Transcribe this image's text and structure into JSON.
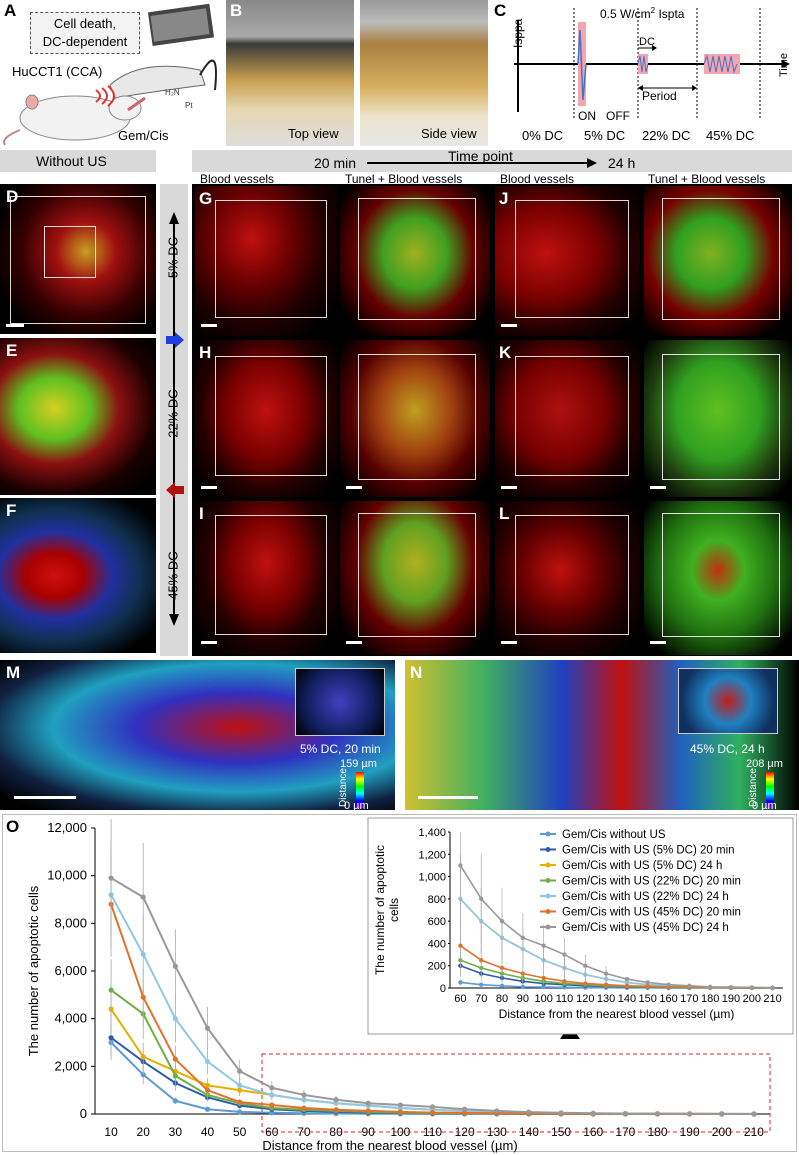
{
  "panel_labels": {
    "A": "A",
    "B": "B",
    "C": "C",
    "D": "D",
    "E": "E",
    "F": "F",
    "G": "G",
    "H": "H",
    "I": "I",
    "J": "J",
    "K": "K",
    "L": "L",
    "M": "M",
    "N": "N",
    "O": "O"
  },
  "panel_a": {
    "box_line1": "Cell death,",
    "box_line2": "DC-dependent",
    "transducer": "HuCCT1 (CCA)",
    "drug": "Gem/Cis"
  },
  "panel_b": {
    "top": "Top view",
    "side": "Side view"
  },
  "panel_c": {
    "intensity": "0.5 W/cm",
    "sup": "2",
    "ispta": " Ispta",
    "yaxis": "Isppa",
    "xaxis": "Time",
    "dc": "DC",
    "on": "ON",
    "off": "OFF",
    "period": "Period",
    "dc0": "0% DC",
    "dc5": "5% DC",
    "dc22": "22% DC",
    "dc45": "45% DC"
  },
  "header": {
    "without_us": "Without US",
    "t20": "20 min",
    "timepoint": "Time point",
    "t24": "24 h"
  },
  "column_titles": {
    "g_bv": "Blood vessels",
    "g_tb": "Tunel + Blood vessels",
    "j_bv": "Blood vessels",
    "j_tb": "Tunel + Blood vessels"
  },
  "side_labels": {
    "dc5": "5% DC",
    "dc22": "22% DC",
    "dc45": "45% DC"
  },
  "panel_m": {
    "label": "5% DC, 20 min",
    "max": "159 µm",
    "axis": "Distance",
    "min": "0 µm"
  },
  "panel_n": {
    "label": "45% DC, 24 h",
    "max": "208 µm",
    "axis": "Distance",
    "min": "0 µm"
  },
  "chart_data": [
    {
      "type": "line",
      "ylabel": "The number of apoptotic cells",
      "xlabel": "Distance from the nearest blood vessel (µm)",
      "x": [
        10,
        20,
        30,
        40,
        50,
        60,
        70,
        80,
        90,
        100,
        110,
        120,
        130,
        140,
        150,
        160,
        170,
        180,
        190,
        200,
        210
      ],
      "ylim": [
        0,
        12000
      ],
      "yticks": [
        "0",
        "2,000",
        "4,000",
        "6,000",
        "8,000",
        "10,000",
        "12,000"
      ],
      "series": [
        {
          "name": "Gem/Cis without US",
          "color": "#5b9bd5",
          "values": [
            3000,
            1650,
            550,
            200,
            90,
            50,
            30,
            20,
            10,
            8,
            6,
            4,
            3,
            2,
            2,
            1,
            1,
            1,
            1,
            0,
            0
          ]
        },
        {
          "name": "Gem/Cis with US (5% DC) 20 min",
          "color": "#2e5ea8",
          "values": [
            3200,
            2200,
            1300,
            700,
            350,
            200,
            130,
            90,
            60,
            40,
            30,
            20,
            15,
            10,
            8,
            6,
            4,
            3,
            2,
            1,
            1
          ]
        },
        {
          "name": "Gem/Cis with US (5% DC) 24 h",
          "color": "#e6b000",
          "values": [
            4400,
            2400,
            1800,
            1200,
            1000,
            800,
            600,
            450,
            350,
            250,
            180,
            120,
            80,
            50,
            30,
            20,
            10,
            8,
            5,
            3,
            2
          ]
        },
        {
          "name": "Gem/Cis with US (22% DC) 20 min",
          "color": "#70ad47",
          "values": [
            5200,
            4200,
            1600,
            800,
            450,
            250,
            180,
            130,
            90,
            60,
            40,
            30,
            20,
            15,
            10,
            8,
            5,
            3,
            2,
            1,
            1
          ]
        },
        {
          "name": "Gem/Cis with US (22% DC) 24 h",
          "color": "#8ec8e8",
          "values": [
            9200,
            6700,
            4000,
            2200,
            1200,
            800,
            600,
            450,
            350,
            250,
            180,
            120,
            80,
            50,
            30,
            20,
            10,
            8,
            5,
            3,
            2
          ]
        },
        {
          "name": "Gem/Cis with US (45% DC) 20 min",
          "color": "#e2712a",
          "values": [
            8800,
            4900,
            2300,
            1000,
            500,
            380,
            250,
            180,
            130,
            90,
            60,
            40,
            30,
            20,
            15,
            10,
            8,
            5,
            3,
            2,
            1
          ]
        },
        {
          "name": "Gem/Cis with US (45% DC) 24 h",
          "color": "#999999",
          "values": [
            9900,
            9100,
            6200,
            3600,
            1800,
            1100,
            800,
            600,
            450,
            380,
            300,
            200,
            130,
            80,
            50,
            30,
            20,
            10,
            8,
            5,
            3
          ]
        }
      ]
    },
    {
      "type": "line",
      "title": "inset",
      "ylabel": "The number of apoptotic cells",
      "xlabel": "Distance from the nearest blood vessel (µm)",
      "x": [
        60,
        70,
        80,
        90,
        100,
        110,
        120,
        130,
        140,
        150,
        160,
        170,
        180,
        190,
        200,
        210
      ],
      "ylim": [
        0,
        1400
      ],
      "yticks": [
        "0",
        "200",
        "400",
        "600",
        "800",
        "1,000",
        "1,200",
        "1,400"
      ]
    }
  ]
}
